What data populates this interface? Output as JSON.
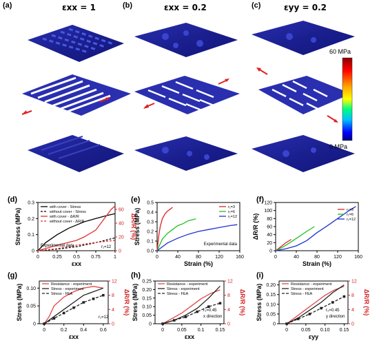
{
  "top": {
    "panels": [
      {
        "label": "(a)",
        "title": "εxx = 1"
      },
      {
        "label": "(b)",
        "title": "εxx = 0.2"
      },
      {
        "label": "(c)",
        "title": "εyy = 0.2"
      }
    ],
    "colorbar": {
      "max_label": "60 MPa",
      "min_label": "0 MPa",
      "colors": [
        "#8b0000",
        "#ff0000",
        "#ffa500",
        "#ffff00",
        "#00ff7f",
        "#00bfff",
        "#0000ff",
        "#000080"
      ]
    }
  },
  "chart_data": [
    {
      "id": "d",
      "label": "(d)",
      "type": "line",
      "xlabel": "εxx",
      "ylabel": "Stress (MPa)",
      "y2label": "ΔR/R (%)",
      "xlim": [
        0,
        1
      ],
      "ylim": [
        0,
        0.3
      ],
      "y2lim": [
        0,
        70
      ],
      "xticks": [
        "0",
        "0.25",
        "0.5",
        "0.75",
        "1"
      ],
      "yticks": [
        "0",
        "0.1",
        "0.2",
        "0.3"
      ],
      "y2ticks": [
        "0",
        "20",
        "40",
        "60"
      ],
      "legend": [
        "with cover - Stress",
        "without cover - Stress",
        "with cover - ΔR/R",
        "without cover - ΔR/R"
      ],
      "annotations": [
        "Experimental data",
        "r₁=12"
      ],
      "series": [
        {
          "name": "with cover - Stress",
          "axis": "left",
          "color": "#000000",
          "dash": "",
          "x": [
            0,
            0.1,
            0.25,
            0.4,
            0.5,
            0.6,
            0.75,
            0.9,
            1.0
          ],
          "y": [
            0,
            0.05,
            0.1,
            0.14,
            0.16,
            0.18,
            0.2,
            0.22,
            0.23
          ]
        },
        {
          "name": "without cover - Stress",
          "axis": "left",
          "color": "#000000",
          "dash": "3,2",
          "x": [
            0,
            0.25,
            0.5,
            0.75,
            1.0
          ],
          "y": [
            0,
            0.01,
            0.025,
            0.05,
            0.08
          ]
        },
        {
          "name": "with cover - ΔR/R",
          "axis": "right",
          "color": "#e03030",
          "dash": "",
          "x": [
            0,
            0.25,
            0.5,
            0.6,
            0.75,
            0.85,
            0.95,
            1.0
          ],
          "y": [
            0,
            8,
            15,
            20,
            30,
            45,
            60,
            65
          ]
        },
        {
          "name": "without cover - ΔR/R",
          "axis": "right",
          "color": "#e03030",
          "dash": "3,2",
          "x": [
            0,
            0.25,
            0.5,
            0.75,
            1.0
          ],
          "y": [
            0,
            3,
            8,
            12,
            15
          ]
        }
      ]
    },
    {
      "id": "e",
      "label": "(e)",
      "type": "line",
      "xlabel": "Strain (%)",
      "ylabel": "Stress (MPa)",
      "xlim": [
        0,
        160
      ],
      "ylim": [
        0,
        0.5
      ],
      "xticks": [
        "0",
        "40",
        "80",
        "120",
        "160"
      ],
      "yticks": [
        "0.0",
        "0.1",
        "0.2",
        "0.3",
        "0.4",
        "0.5"
      ],
      "legend": [
        "r₁=3",
        "r₁=6",
        "r₁=12"
      ],
      "annotations": [
        "Experimental data"
      ],
      "series": [
        {
          "name": "r₁=3",
          "axis": "left",
          "color": "#e02020",
          "dash": "",
          "x": [
            0,
            3,
            6,
            10,
            15,
            20,
            25,
            30
          ],
          "y": [
            0,
            0.15,
            0.25,
            0.33,
            0.38,
            0.41,
            0.43,
            0.45
          ]
        },
        {
          "name": "r₁=6",
          "axis": "left",
          "color": "#20c020",
          "dash": "",
          "x": [
            0,
            10,
            20,
            30,
            40,
            50,
            60,
            75
          ],
          "y": [
            0,
            0.12,
            0.18,
            0.22,
            0.26,
            0.28,
            0.31,
            0.33
          ]
        },
        {
          "name": "r₁=12",
          "axis": "left",
          "color": "#2030d0",
          "dash": "",
          "x": [
            0,
            20,
            40,
            60,
            80,
            100,
            120,
            140,
            155
          ],
          "y": [
            0,
            0.08,
            0.13,
            0.17,
            0.2,
            0.22,
            0.24,
            0.26,
            0.27
          ]
        }
      ]
    },
    {
      "id": "f",
      "label": "(f)",
      "type": "line",
      "xlabel": "Strain (%)",
      "ylabel": "ΔR/R (%)",
      "xlim": [
        0,
        160
      ],
      "ylim": [
        0,
        120
      ],
      "xticks": [
        "0",
        "40",
        "80",
        "120",
        "160"
      ],
      "yticks": [
        "0",
        "20",
        "40",
        "60",
        "80",
        "100",
        "120"
      ],
      "legend": [
        "r₁=3",
        "r₁=6",
        "r₁=12"
      ],
      "series": [
        {
          "name": "r₁=3",
          "axis": "left",
          "color": "#e02020",
          "dash": "",
          "x": [
            0,
            5,
            10,
            15,
            20,
            25,
            30
          ],
          "y": [
            0,
            5,
            10,
            15,
            20,
            24,
            28
          ]
        },
        {
          "name": "r₁=6",
          "axis": "left",
          "color": "#20c020",
          "dash": "",
          "x": [
            0,
            15,
            30,
            45,
            60,
            75
          ],
          "y": [
            0,
            10,
            22,
            35,
            48,
            60
          ]
        },
        {
          "name": "r₁=12",
          "axis": "left",
          "color": "#2030d0",
          "dash": "",
          "x": [
            0,
            20,
            40,
            60,
            80,
            100,
            120,
            140,
            155
          ],
          "y": [
            0,
            5,
            12,
            25,
            45,
            62,
            80,
            98,
            110
          ]
        }
      ]
    },
    {
      "id": "g",
      "label": "(g)",
      "type": "line",
      "xlabel": "εxx",
      "ylabel": "Stress (MPa)",
      "y2label": "ΔR/R (%)",
      "xlim": [
        -0.05,
        0.65
      ],
      "ylim": [
        0,
        0.12
      ],
      "y2lim": [
        0,
        12
      ],
      "xticks": [
        "0",
        "0.2",
        "0.4",
        "0.6"
      ],
      "xtickvals": [
        0,
        0.2,
        0.4,
        0.6
      ],
      "yticks": [
        "0",
        "0.05",
        "0.10"
      ],
      "ytickvals": [
        0,
        0.05,
        0.1
      ],
      "y2ticks": [
        "0",
        "4",
        "8",
        "12"
      ],
      "y2tickvals": [
        0,
        4,
        8,
        12
      ],
      "legend": [
        "Resistance - experiment",
        "Stress - experiment",
        "Stress - FEA"
      ],
      "annotations": [
        "r₁=12"
      ],
      "series": [
        {
          "name": "Resistance - experiment",
          "axis": "right",
          "color": "#e04848",
          "dash": "",
          "x": [
            0,
            0.05,
            0.1,
            0.2,
            0.3,
            0.4,
            0.5,
            0.6
          ],
          "y": [
            0,
            2,
            5,
            7.5,
            9,
            10,
            10.5,
            10
          ]
        },
        {
          "name": "Stress - experiment",
          "axis": "left",
          "color": "#222222",
          "dash": "",
          "x": [
            0,
            0.1,
            0.2,
            0.3,
            0.4,
            0.5,
            0.6
          ],
          "y": [
            0,
            0.02,
            0.04,
            0.06,
            0.08,
            0.09,
            0.1
          ]
        },
        {
          "name": "Stress - FEA",
          "axis": "left",
          "color": "#222222",
          "dash": "4,2",
          "marker": "square",
          "x": [
            0,
            0.1,
            0.2,
            0.3,
            0.4,
            0.5,
            0.6
          ],
          "y": [
            0,
            0.015,
            0.03,
            0.045,
            0.06,
            0.07,
            0.08
          ]
        }
      ]
    },
    {
      "id": "h",
      "label": "(h)",
      "type": "line",
      "xlabel": "εxx",
      "ylabel": "Stress (MPa)",
      "y2label": "ΔR/R (%)",
      "xlim": [
        -0.02,
        0.16
      ],
      "ylim": [
        0,
        0.25
      ],
      "y2lim": [
        0,
        12
      ],
      "xticks": [
        "0",
        "0.05",
        "0.1",
        "0.15"
      ],
      "xtickvals": [
        0,
        0.05,
        0.1,
        0.15
      ],
      "yticks": [
        "0",
        "0.05",
        "0.10",
        "0.15",
        "0.20",
        "0.25"
      ],
      "ytickvals": [
        0,
        0.05,
        0.1,
        0.15,
        0.2,
        0.25
      ],
      "y2ticks": [
        "0",
        "4",
        "8",
        "12"
      ],
      "y2tickvals": [
        0,
        4,
        8,
        12
      ],
      "legend": [
        "Resistance - experiment",
        "Stress - experiment",
        "Stress - FEA"
      ],
      "annotations": [
        "r₂=0.45",
        "x direction"
      ],
      "series": [
        {
          "name": "Resistance - experiment",
          "axis": "right",
          "color": "#e04848",
          "dash": "",
          "x": [
            0,
            0.025,
            0.05,
            0.075,
            0.1,
            0.125,
            0.15
          ],
          "y": [
            0,
            1.5,
            3,
            5,
            7,
            8.5,
            9.5
          ]
        },
        {
          "name": "Stress - experiment",
          "axis": "left",
          "color": "#222222",
          "dash": "",
          "x": [
            0,
            0.03,
            0.06,
            0.09,
            0.12,
            0.15
          ],
          "y": [
            0,
            0.02,
            0.05,
            0.09,
            0.15,
            0.22
          ]
        },
        {
          "name": "Stress - FEA",
          "axis": "left",
          "color": "#222222",
          "dash": "4,2",
          "marker": "square",
          "x": [
            0,
            0.03,
            0.06,
            0.09,
            0.12,
            0.15
          ],
          "y": [
            0,
            0.02,
            0.04,
            0.07,
            0.1,
            0.12
          ]
        }
      ]
    },
    {
      "id": "i",
      "label": "(i)",
      "type": "line",
      "xlabel": "εyy",
      "ylabel": "Stress (MPa)",
      "y2label": "ΔR/R (%)",
      "xlim": [
        -0.02,
        0.16
      ],
      "ylim": [
        0,
        0.22
      ],
      "y2lim": [
        0,
        12
      ],
      "xticks": [
        "0",
        "0.05",
        "0.10",
        "0.15"
      ],
      "xtickvals": [
        0,
        0.05,
        0.1,
        0.15
      ],
      "yticks": [
        "0",
        "0.05",
        "0.10",
        "0.15",
        "0.20"
      ],
      "ytickvals": [
        0,
        0.05,
        0.1,
        0.15,
        0.2
      ],
      "y2ticks": [
        "0",
        "4",
        "8",
        "12"
      ],
      "y2tickvals": [
        0,
        4,
        8,
        12
      ],
      "legend": [
        "Resistance - experiment",
        "Stress - experiment",
        "Stress - FEA"
      ],
      "annotations": [
        "r₂=0.45",
        "y direction"
      ],
      "series": [
        {
          "name": "Resistance - experiment",
          "axis": "right",
          "color": "#e04848",
          "dash": "",
          "x": [
            0,
            0.025,
            0.05,
            0.075,
            0.1,
            0.125,
            0.15
          ],
          "y": [
            0,
            2,
            4,
            6,
            8,
            9.5,
            10.5
          ]
        },
        {
          "name": "Stress - experiment",
          "axis": "left",
          "color": "#222222",
          "dash": "",
          "x": [
            0,
            0.03,
            0.06,
            0.09,
            0.12,
            0.15
          ],
          "y": [
            0,
            0.03,
            0.07,
            0.11,
            0.16,
            0.2
          ]
        },
        {
          "name": "Stress - FEA",
          "axis": "left",
          "color": "#222222",
          "dash": "4,2",
          "marker": "square",
          "x": [
            0,
            0.03,
            0.06,
            0.09,
            0.12,
            0.15
          ],
          "y": [
            0,
            0.025,
            0.05,
            0.08,
            0.11,
            0.14
          ]
        }
      ]
    }
  ]
}
